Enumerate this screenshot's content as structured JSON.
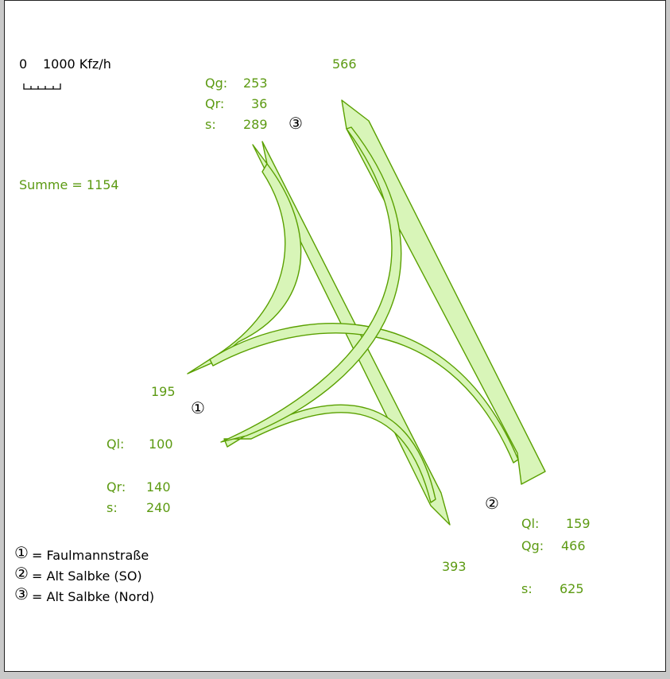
{
  "colors": {
    "band_fill": "#d8f5b8",
    "band_stroke": "#5aa000",
    "text_green": "#5c9a12",
    "text_black": "#000000"
  },
  "scale": {
    "zero": "0",
    "label": "1000 Kfz/h"
  },
  "total": "Summe = 1154",
  "node1": {
    "marker": "①",
    "in_total": "195",
    "ql_label": "Ql:",
    "ql_value": "100",
    "qr_label": "Qr:",
    "qr_value": "140",
    "s_label": "s:",
    "s_value": "240"
  },
  "node2": {
    "marker": "②",
    "in_total": "393",
    "ql_label": "Ql:",
    "ql_value": "159",
    "qg_label": "Qg:",
    "qg_value": "466",
    "s_label": "s:",
    "s_value": "625"
  },
  "node3": {
    "marker": "③",
    "in_total": "566",
    "qg_label": "Qg:",
    "qg_value": "253",
    "qr_label": "Qr:",
    "qr_value": "36",
    "s_label": "s:",
    "s_value": "289"
  },
  "legend": [
    {
      "marker": "①",
      "text": "= Faulmannstraße"
    },
    {
      "marker": "②",
      "text": "= Alt Salbke (SO)"
    },
    {
      "marker": "③",
      "text": "= Alt Salbke (Nord)"
    }
  ]
}
